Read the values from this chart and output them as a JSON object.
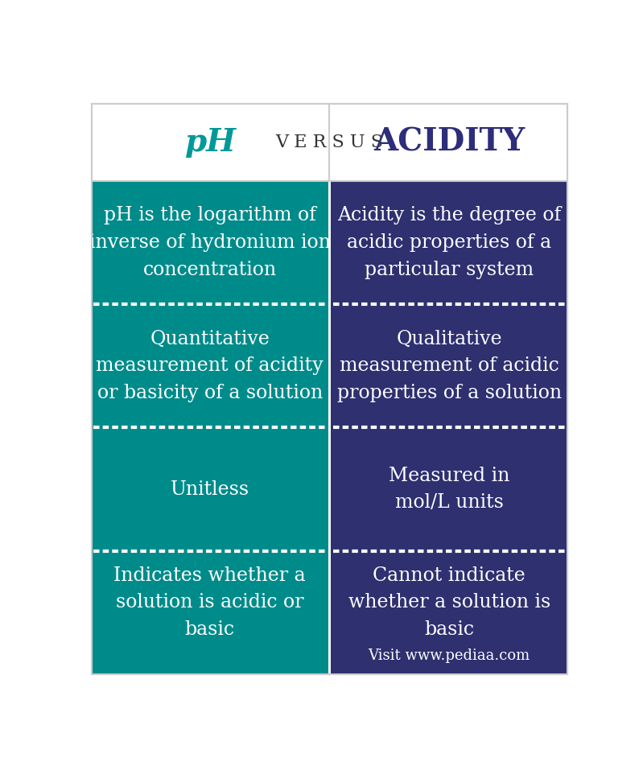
{
  "title_left": "pH",
  "title_versus": "V E R S U S",
  "title_right": "ACIDITY",
  "title_left_color": "#009999",
  "title_versus_color": "#333333",
  "title_right_color": "#2d2d7a",
  "left_bg_color": "#008B8B",
  "right_bg_color": "#2e3070",
  "text_color": "#ffffff",
  "border_color": "#cccccc",
  "bg_color": "#ffffff",
  "rows": [
    {
      "left": "pH is the logarithm of\ninverse of hydronium ion\nconcentration",
      "right": "Acidity is the degree of\nacidic properties of a\nparticular system"
    },
    {
      "left": "Quantitative\nmeasurement of acidity\nor basicity of a solution",
      "right": "Qualitative\nmeasurement of acidic\nproperties of a solution"
    },
    {
      "left": "Unitless",
      "right": "Measured in\nmol/L units"
    },
    {
      "left": "Indicates whether a\nsolution is acidic or\nbasic",
      "right": "Cannot indicate\nwhether a solution is\nbasic"
    }
  ],
  "watermark": "Visit www.pediaa.com",
  "font_size_title": 28,
  "font_size_versus": 16,
  "font_size_cell": 17,
  "font_size_watermark": 13
}
